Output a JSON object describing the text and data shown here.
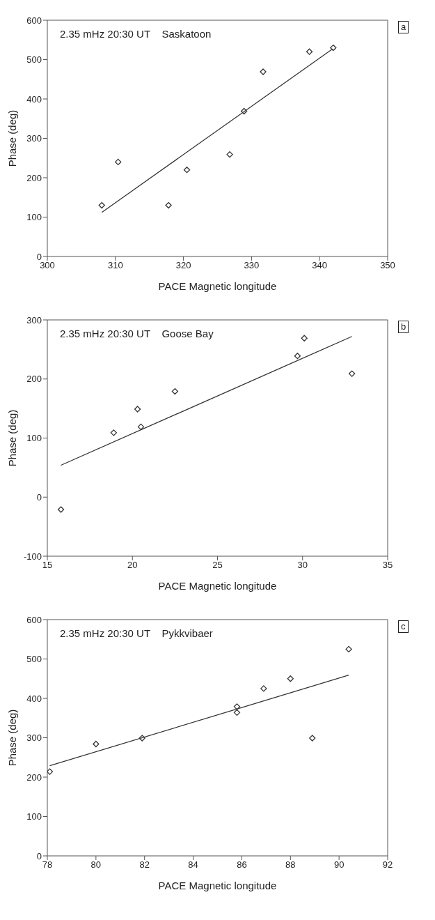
{
  "chart_data": [
    {
      "type": "scatter",
      "xlabel": "PACE Magnetic longitude",
      "ylabel": "Phase (deg)",
      "xlim": [
        300,
        350
      ],
      "xticks": [
        300,
        310,
        320,
        330,
        340,
        350
      ],
      "ylim": [
        0,
        600
      ],
      "yticks": [
        0,
        100,
        200,
        300,
        400,
        500,
        600
      ],
      "line_style": "solid",
      "annotations": [
        "2.35 mHz 20:30 UT    Saskatoon",
        "a"
      ],
      "series": [
        {
          "marker": "diamond",
          "color": "#333333",
          "x": [
            308.0,
            310.4,
            317.8,
            320.5,
            326.8,
            328.9,
            331.7,
            338.5,
            342.0
          ],
          "values": [
            130,
            240,
            130,
            220,
            259,
            369,
            469,
            520,
            530
          ]
        },
        {
          "type": "line",
          "marker": "none",
          "color": "#333333",
          "x": [
            308.0,
            341.9
          ],
          "values": [
            112,
            527
          ]
        }
      ]
    },
    {
      "type": "scatter",
      "xlabel": "PACE Magnetic longitude",
      "ylabel": "Phase (deg)",
      "xlim": [
        15,
        35
      ],
      "xticks": [
        15,
        20,
        25,
        30,
        35
      ],
      "ylim": [
        -100,
        300
      ],
      "yticks": [
        -100,
        0,
        100,
        200,
        300
      ],
      "line_style": "solid",
      "annotations": [
        "2.35 mHz 20:30 UT    Goose Bay",
        "b"
      ],
      "series": [
        {
          "marker": "diamond",
          "color": "#333333",
          "x": [
            15.8,
            18.9,
            20.3,
            20.5,
            22.5,
            29.7,
            30.1,
            32.9
          ],
          "values": [
            -21,
            109,
            149,
            119,
            179,
            239,
            269,
            209
          ]
        },
        {
          "type": "line",
          "marker": "none",
          "color": "#333333",
          "x": [
            15.8,
            32.9
          ],
          "values": [
            54,
            272
          ]
        }
      ]
    },
    {
      "type": "scatter",
      "xlabel": "PACE Magnetic longitude",
      "ylabel": "Phase (deg)",
      "xlim": [
        78,
        92
      ],
      "xticks": [
        78,
        80,
        82,
        84,
        86,
        88,
        90,
        92
      ],
      "ylim": [
        0,
        600
      ],
      "yticks": [
        0,
        100,
        200,
        300,
        400,
        500,
        600
      ],
      "line_style": "solid",
      "annotations": [
        "2.35 mHz 20:30 UT    Pykkvibaer",
        "c"
      ],
      "series": [
        {
          "marker": "diamond",
          "color": "#333333",
          "x": [
            78.1,
            80.0,
            81.9,
            85.8,
            85.8,
            86.9,
            88.0,
            88.9,
            90.4
          ],
          "values": [
            214,
            284,
            299,
            379,
            364,
            425,
            450,
            299,
            525
          ]
        },
        {
          "type": "line",
          "marker": "none",
          "color": "#333333",
          "x": [
            78.1,
            90.4
          ],
          "values": [
            229,
            459
          ]
        }
      ]
    }
  ]
}
